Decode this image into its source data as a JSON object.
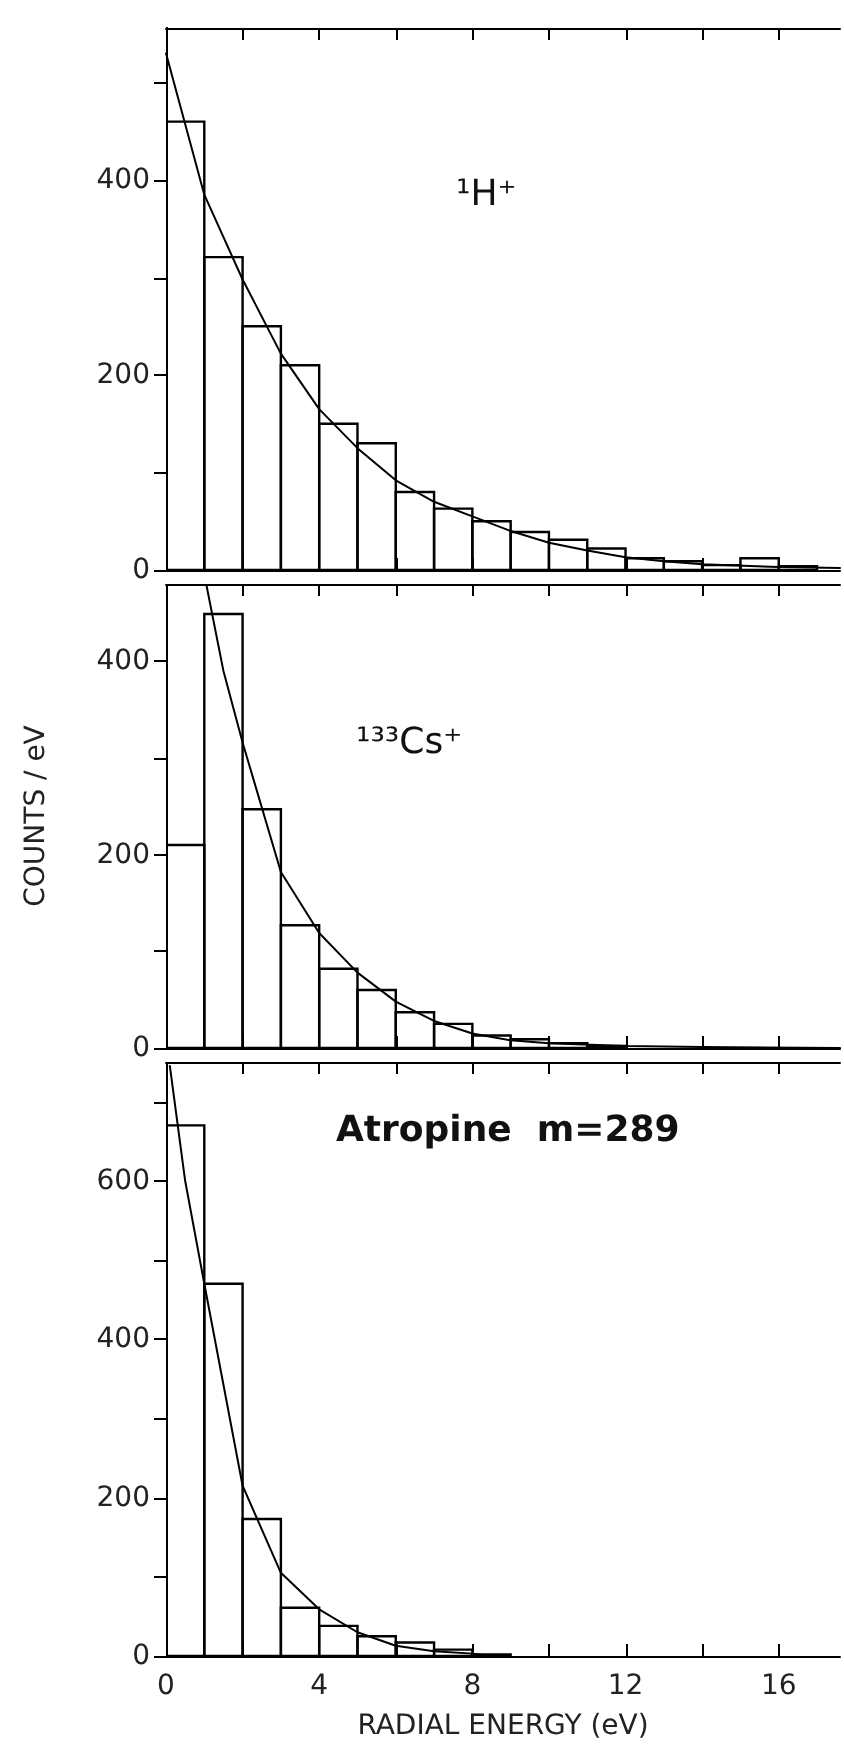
{
  "chart_data": [
    {
      "type": "histogram",
      "annotations": [
        "¹H⁺"
      ],
      "xlim": [
        0,
        17.6
      ],
      "xticks": [
        0,
        {
          "value": 2,
          "label": null
        },
        4,
        {
          "value": 6,
          "label": null
        },
        8,
        {
          "value": 10,
          "label": null
        },
        12,
        {
          "value": 14,
          "label": null
        },
        16
      ],
      "ylim": [
        0,
        556
      ],
      "yticks": [
        0,
        {
          "value": 100,
          "label": null
        },
        200,
        {
          "value": 300,
          "label": null
        },
        400,
        {
          "value": 500,
          "label": null
        }
      ],
      "tick_labels": "y",
      "series": [
        {
          "type": "histogram",
          "color": "#000000",
          "bins": [
            0,
            1,
            2,
            3,
            4,
            5,
            6,
            7,
            8,
            9,
            10,
            11,
            12,
            13,
            14,
            15,
            16,
            17
          ],
          "values": [
            460,
            321,
            250,
            210,
            150,
            130,
            80,
            63,
            50,
            39,
            31,
            22,
            12,
            9,
            5,
            12,
            4
          ]
        },
        {
          "type": "line",
          "color": "#000000",
          "x": [
            0,
            1,
            2,
            3,
            4,
            5,
            6,
            7,
            8,
            9,
            10,
            11,
            12,
            13,
            14,
            16,
            17.6
          ],
          "values": [
            530,
            385,
            298,
            222,
            165,
            125,
            92,
            70,
            55,
            40,
            28,
            20,
            13,
            9,
            6,
            3,
            2
          ]
        }
      ]
    },
    {
      "type": "histogram",
      "ylabel": "COUNTS / eV",
      "annotations": [
        "¹³³Cs⁺"
      ],
      "xlim": [
        0,
        17.6
      ],
      "xticks": [
        0,
        {
          "value": 2,
          "label": null
        },
        4,
        {
          "value": 6,
          "label": null
        },
        8,
        {
          "value": 10,
          "label": null
        },
        12,
        {
          "value": 14,
          "label": null
        },
        16
      ],
      "ylim": [
        0,
        480
      ],
      "yticks": [
        0,
        {
          "value": 100,
          "label": null
        },
        200,
        {
          "value": 300,
          "label": null
        },
        400
      ],
      "tick_labels": "y",
      "series": [
        {
          "type": "histogram",
          "color": "#000000",
          "bins": [
            0,
            1,
            2,
            3,
            4,
            5,
            6,
            7,
            8,
            9,
            10,
            11,
            12
          ],
          "values": [
            210,
            449,
            247,
            127,
            82,
            60,
            37,
            25,
            13,
            9,
            5,
            2
          ]
        },
        {
          "type": "line",
          "color": "#000000",
          "x": [
            1.05,
            1.5,
            2,
            3,
            4,
            5,
            6,
            7,
            8,
            9,
            10,
            12,
            14,
            17.6
          ],
          "values": [
            480,
            390,
            316,
            182,
            119,
            78,
            48,
            28,
            15,
            8,
            5,
            2,
            1,
            0
          ]
        }
      ]
    },
    {
      "type": "histogram",
      "xlabel": "RADIAL ENERGY (eV)",
      "annotations": [
        "Atropine  m=289"
      ],
      "xlim": [
        0,
        17.6
      ],
      "xticks": [
        0,
        {
          "value": 2,
          "label": null
        },
        4,
        {
          "value": 6,
          "label": null
        },
        8,
        {
          "value": 10,
          "label": null
        },
        12,
        {
          "value": 14,
          "label": null
        },
        16
      ],
      "ylim": [
        0,
        750
      ],
      "yticks": [
        0,
        {
          "value": 100,
          "label": null
        },
        200,
        {
          "value": 300,
          "label": null
        },
        400,
        {
          "value": 500,
          "label": null
        },
        600,
        {
          "value": 700,
          "label": null
        }
      ],
      "series": [
        {
          "type": "histogram",
          "color": "#000000",
          "bins": [
            0,
            1,
            2,
            3,
            4,
            5,
            6,
            7,
            8,
            9
          ],
          "values": [
            670,
            470,
            173,
            61,
            38,
            25,
            17,
            8,
            2
          ]
        },
        {
          "type": "line",
          "color": "#000000",
          "x": [
            0.1,
            0.5,
            1,
            2,
            3,
            4,
            5,
            6,
            7,
            8,
            8.5
          ],
          "values": [
            745,
            600,
            470,
            215,
            105,
            59,
            30,
            13,
            6,
            3,
            0
          ]
        }
      ]
    }
  ]
}
